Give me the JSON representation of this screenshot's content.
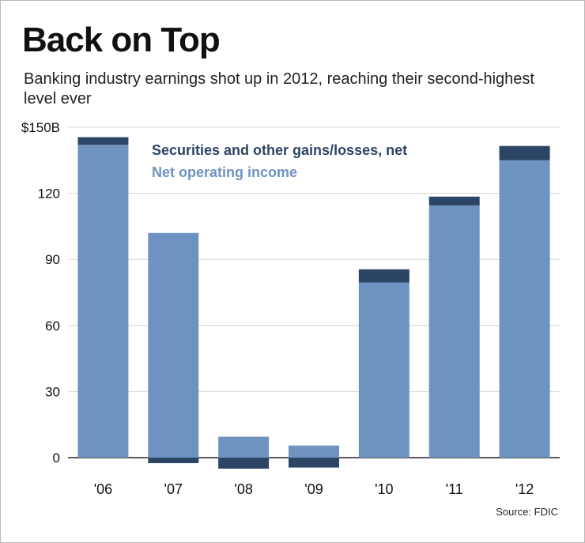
{
  "title": "Back on Top",
  "subtitle": "Banking industry earnings shot up in 2012, reaching their second-highest level ever",
  "source": "Source: FDIC",
  "colors": {
    "net_operating_income": "#6f93c1",
    "securities_gains_losses": "#2d4564",
    "grid": "#d4d4d4",
    "axis": "#222222"
  },
  "chart_data": {
    "type": "bar",
    "stacked": true,
    "categories": [
      "'06",
      "'07",
      "'08",
      "'09",
      "'10",
      "'11",
      "'12"
    ],
    "series": [
      {
        "name": "Net operating income",
        "values": [
          142,
          102,
          9.5,
          5.5,
          79.5,
          114.5,
          135
        ]
      },
      {
        "name": "Securities and other gains/losses, net",
        "values": [
          3.5,
          -2.5,
          -5,
          -4.5,
          6,
          4,
          6.5
        ]
      }
    ],
    "y_ticks": [
      "$150B",
      "120",
      "90",
      "60",
      "30",
      "0"
    ],
    "ylim": [
      -7,
      150
    ],
    "grid": true,
    "legend_position": "top-center"
  }
}
